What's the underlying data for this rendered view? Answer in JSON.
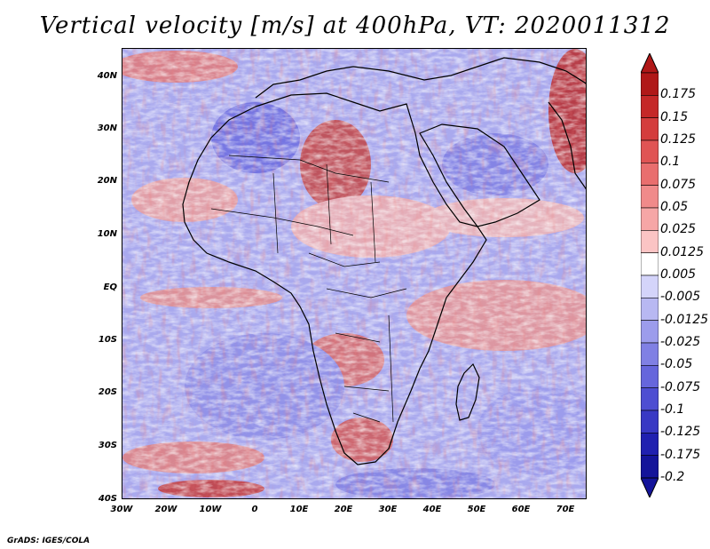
{
  "title": "Vertical velocity [m/s] at 400hPa, VT: 2020011312",
  "credit": "GrADS: IGES/COLA",
  "map": {
    "variable": "Vertical velocity",
    "units": "m/s",
    "level": "400hPa",
    "valid_time": "2020011312",
    "lat_labels": [
      "40N",
      "30N",
      "20N",
      "10N",
      "EQ",
      "10S",
      "20S",
      "30S",
      "40S"
    ],
    "lon_labels": [
      "30W",
      "20W",
      "10W",
      "0",
      "10E",
      "20E",
      "30E",
      "40E",
      "50E",
      "60E",
      "70E"
    ],
    "extent": {
      "lon_min": -30,
      "lon_max": 75,
      "lat_min": -40,
      "lat_max": 45
    }
  },
  "colorbar": {
    "labels": [
      "0.175",
      "0.15",
      "0.125",
      "0.1",
      "0.075",
      "0.05",
      "0.025",
      "0.0125",
      "0.005",
      "-0.005",
      "-0.0125",
      "-0.025",
      "-0.05",
      "-0.075",
      "-0.1",
      "-0.125",
      "-0.175",
      "-0.2"
    ],
    "colors": [
      "#b01818",
      "#c52828",
      "#d43c3c",
      "#e05454",
      "#e96e6e",
      "#f08a8a",
      "#f6a6a6",
      "#fbc4c4",
      "#ffffff",
      "#d4d4fa",
      "#b8b8f2",
      "#9c9cec",
      "#8080e4",
      "#6666dc",
      "#4e4ed2",
      "#3838c4",
      "#2020b0",
      "#14149a"
    ]
  }
}
